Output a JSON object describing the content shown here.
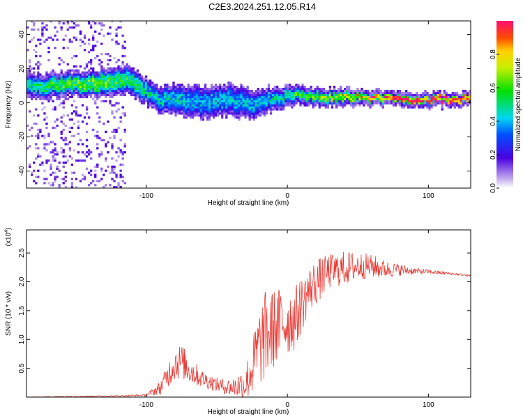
{
  "title": "C2E3.2024.251.12.05.R14",
  "chart_data": [
    {
      "type": "heatmap",
      "xlabel": "Height of straight line (km)",
      "ylabel": "Frequency (Hz)",
      "xlim": [
        -185,
        130
      ],
      "ylim": [
        -50,
        48
      ],
      "xticks": [
        -100,
        0,
        100
      ],
      "yticks": [
        -40,
        -20,
        0,
        20,
        40
      ],
      "colorbar": {
        "label": "Normalized spectral amplitude",
        "range": [
          0,
          1
        ],
        "ticks": [
          0.0,
          0.2,
          0.4,
          0.6,
          0.8
        ]
      },
      "ridge": {
        "x": [
          -185,
          -170,
          -150,
          -130,
          -115,
          -105,
          -95,
          -85,
          -70,
          -55,
          -45,
          -35,
          -25,
          -15,
          -5,
          0,
          10,
          25,
          40,
          55,
          70,
          85,
          100,
          115,
          130
        ],
        "center_hz": [
          10,
          10,
          11,
          12,
          14,
          10,
          3,
          2,
          1,
          0,
          2,
          1,
          -1,
          2,
          2,
          5,
          4,
          3,
          4,
          3,
          2,
          2,
          2,
          2,
          2
        ],
        "half_width_hz": [
          5,
          5,
          5,
          6,
          6,
          6,
          5,
          6,
          7,
          7,
          7,
          7,
          6,
          5,
          4,
          4,
          3,
          3,
          3,
          2,
          2,
          2,
          2,
          2,
          2
        ],
        "peak_amplitude": [
          0.45,
          0.55,
          0.6,
          0.6,
          0.55,
          0.5,
          0.45,
          0.45,
          0.4,
          0.4,
          0.4,
          0.4,
          0.4,
          0.45,
          0.45,
          0.5,
          0.6,
          0.65,
          0.7,
          0.8,
          0.95,
          1.0,
          1.0,
          1.0,
          1.0
        ]
      },
      "noise_band_x": [
        -185,
        -115
      ]
    },
    {
      "type": "line",
      "xlabel": "Height of straight line (km)",
      "ylabel": "SNR (10 * v/v)",
      "y_multiplier": "(x10",
      "y_multiplier_exp": "4",
      "xlim": [
        -185,
        130
      ],
      "ylim": [
        0,
        2.9
      ],
      "xticks": [
        -100,
        0,
        100
      ],
      "yticks": [
        0.5,
        1.0,
        1.5,
        2.0,
        2.5
      ],
      "color": "#e83a34",
      "x": [
        -185,
        -150,
        -120,
        -100,
        -90,
        -80,
        -75,
        -70,
        -60,
        -50,
        -40,
        -30,
        -25,
        -20,
        -15,
        -10,
        -5,
        0,
        5,
        10,
        15,
        20,
        25,
        30,
        40,
        50,
        60,
        70,
        80,
        90,
        100,
        110,
        120,
        130
      ],
      "y": [
        0.0,
        0.01,
        0.02,
        0.03,
        0.15,
        0.55,
        0.6,
        0.45,
        0.3,
        0.2,
        0.15,
        0.2,
        0.45,
        0.8,
        1.0,
        1.1,
        1.2,
        1.25,
        1.3,
        1.55,
        1.8,
        1.95,
        2.05,
        2.15,
        2.2,
        2.25,
        2.25,
        2.2,
        2.2,
        2.18,
        2.17,
        2.15,
        2.13,
        2.1
      ],
      "amplitude": [
        0.0,
        0.01,
        0.01,
        0.02,
        0.12,
        0.3,
        0.3,
        0.25,
        0.15,
        0.12,
        0.15,
        0.3,
        0.5,
        0.7,
        0.8,
        0.7,
        0.65,
        0.6,
        0.55,
        0.5,
        0.4,
        0.4,
        0.35,
        0.3,
        0.3,
        0.25,
        0.2,
        0.15,
        0.1,
        0.06,
        0.04,
        0.03,
        0.02,
        0.02
      ]
    }
  ]
}
